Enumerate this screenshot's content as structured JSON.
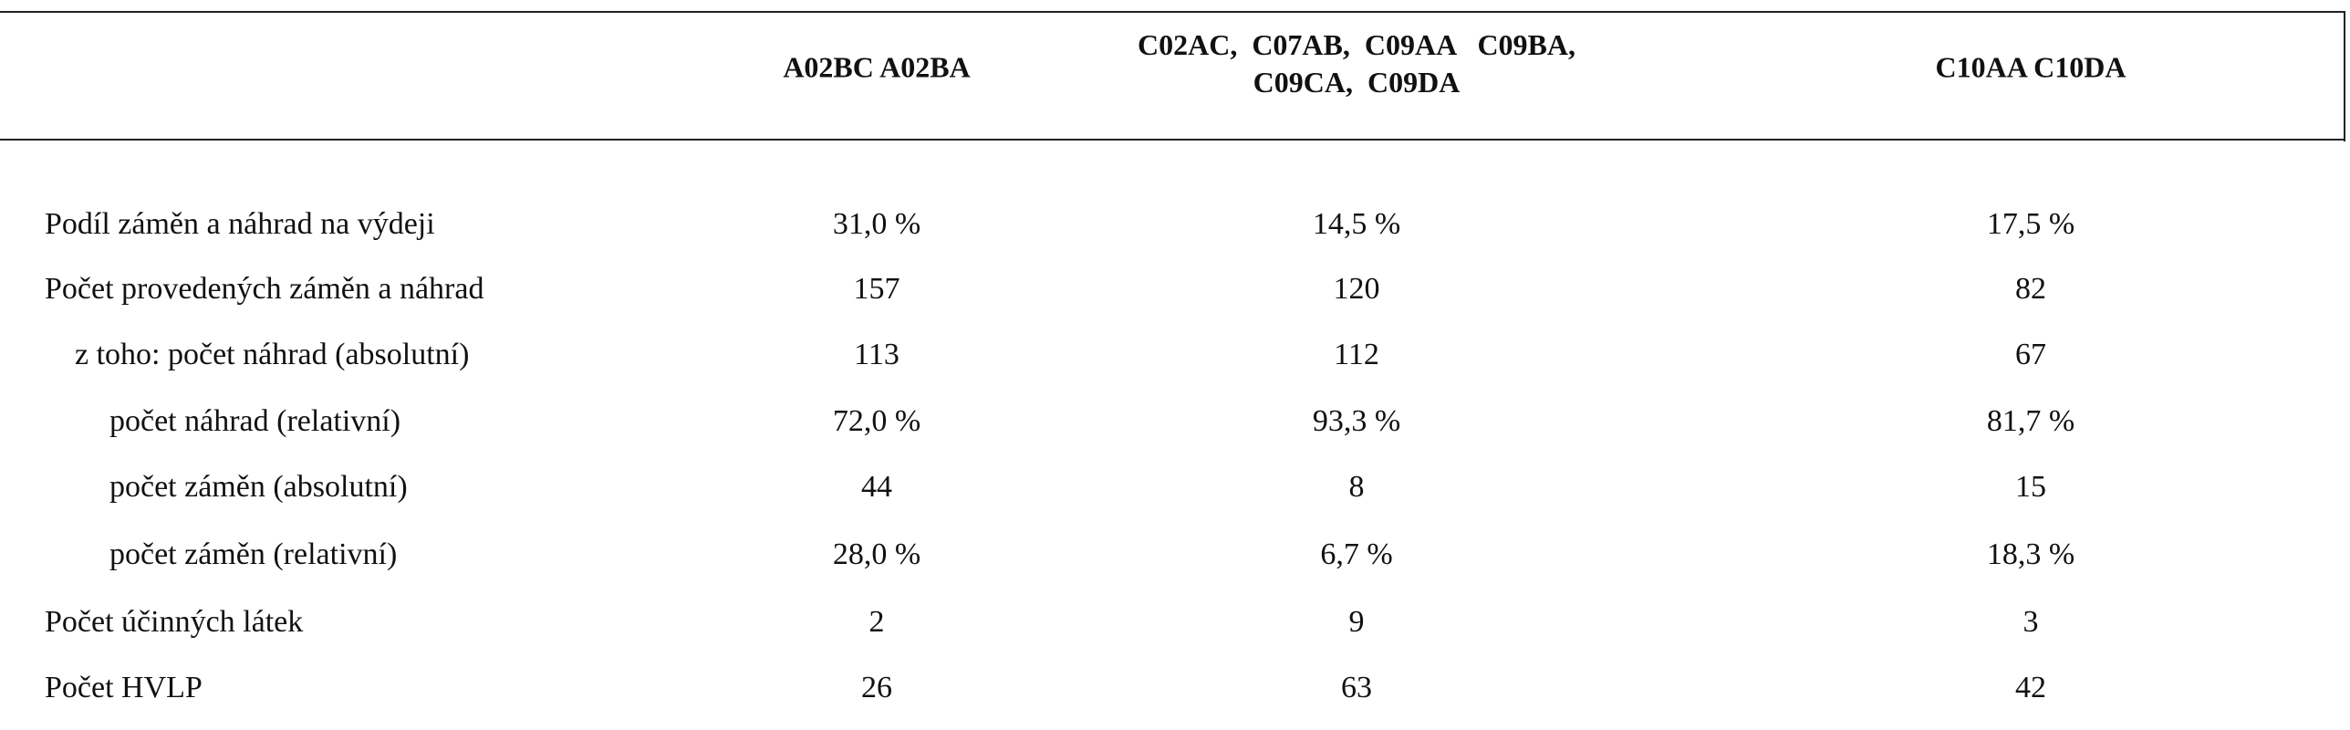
{
  "table": {
    "header": [
      "A02BC A02BA",
      "C02AC,  C07AB,  C09AA   C09BA,\nC09CA,  C09DA",
      "C10AA C10DA"
    ],
    "rows": [
      [
        "Podíl záměn a náhrad na výdeji",
        "31,0 %",
        "14,5 %",
        "17,5 %"
      ],
      [
        "Počet provedených záměn a náhrad",
        "157",
        "120",
        "82"
      ],
      [
        "z toho: počet náhrad (absolutní)",
        "113",
        "112",
        "67"
      ],
      [
        "počet náhrad (relativní)",
        "72,0 %",
        "93,3 %",
        "81,7 %"
      ],
      [
        "počet záměn (absolutní)",
        "44",
        "8",
        "15"
      ],
      [
        "počet záměn (relativní)",
        "28,0 %",
        "6,7 %",
        "18,3 %"
      ],
      [
        "Počet účinných látek",
        "2",
        "9",
        "3"
      ],
      [
        "Počet HVLP",
        "26",
        "63",
        "42"
      ]
    ]
  }
}
